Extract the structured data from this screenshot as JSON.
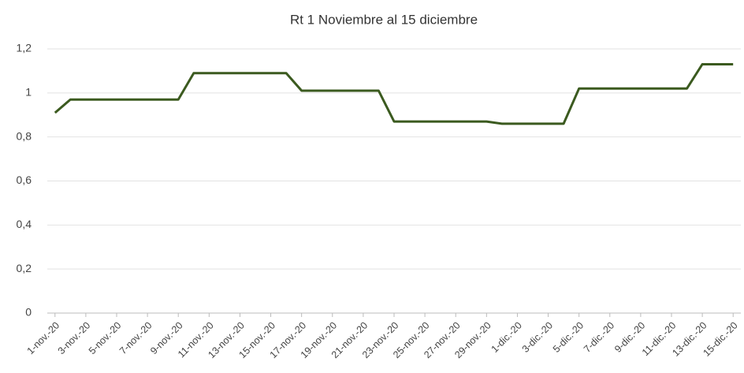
{
  "chart_data": {
    "type": "line",
    "title": "Rt  1 Noviembre al 15 diciembre",
    "categories": [
      "1-nov.-20",
      null,
      "3-nov.-20",
      null,
      "5-nov.-20",
      null,
      "7-nov.-20",
      null,
      "9-nov.-20",
      null,
      "11-nov.-20",
      null,
      "13-nov.-20",
      null,
      "15-nov.-20",
      null,
      "17-nov.-20",
      null,
      "19-nov.-20",
      null,
      "21-nov.-20",
      null,
      "23-nov.-20",
      null,
      "25-nov.-20",
      null,
      "27-nov.-20",
      null,
      "29-nov.-20",
      null,
      "1-dic.-20",
      null,
      "3-dic.-20",
      null,
      "5-dic.-20",
      null,
      "7-dic.-20",
      null,
      "9-dic.-20",
      null,
      "11-dic.-20",
      null,
      "13-dic.-20",
      null,
      "15-dic.-20"
    ],
    "series": [
      {
        "name": "Rt",
        "color": "#3b5a1f",
        "values": [
          0.91,
          0.97,
          0.97,
          0.97,
          0.97,
          0.97,
          0.97,
          0.97,
          0.97,
          1.09,
          1.09,
          1.09,
          1.09,
          1.09,
          1.09,
          1.09,
          1.01,
          1.01,
          1.01,
          1.01,
          1.01,
          1.01,
          0.87,
          0.87,
          0.87,
          0.87,
          0.87,
          0.87,
          0.87,
          0.86,
          0.86,
          0.86,
          0.86,
          0.86,
          1.02,
          1.02,
          1.02,
          1.02,
          1.02,
          1.02,
          1.02,
          1.02,
          1.13,
          1.13,
          1.13
        ]
      }
    ],
    "ylim": [
      0,
      1.2
    ],
    "yticks": [
      0,
      {
        "value": 0.2,
        "label": "0,2"
      },
      {
        "value": 0.4,
        "label": "0,4"
      },
      {
        "value": 0.6,
        "label": "0,6"
      },
      {
        "value": 0.8,
        "label": "0,8"
      },
      1,
      {
        "value": 1.2,
        "label": "1,2"
      }
    ],
    "grid": true
  }
}
